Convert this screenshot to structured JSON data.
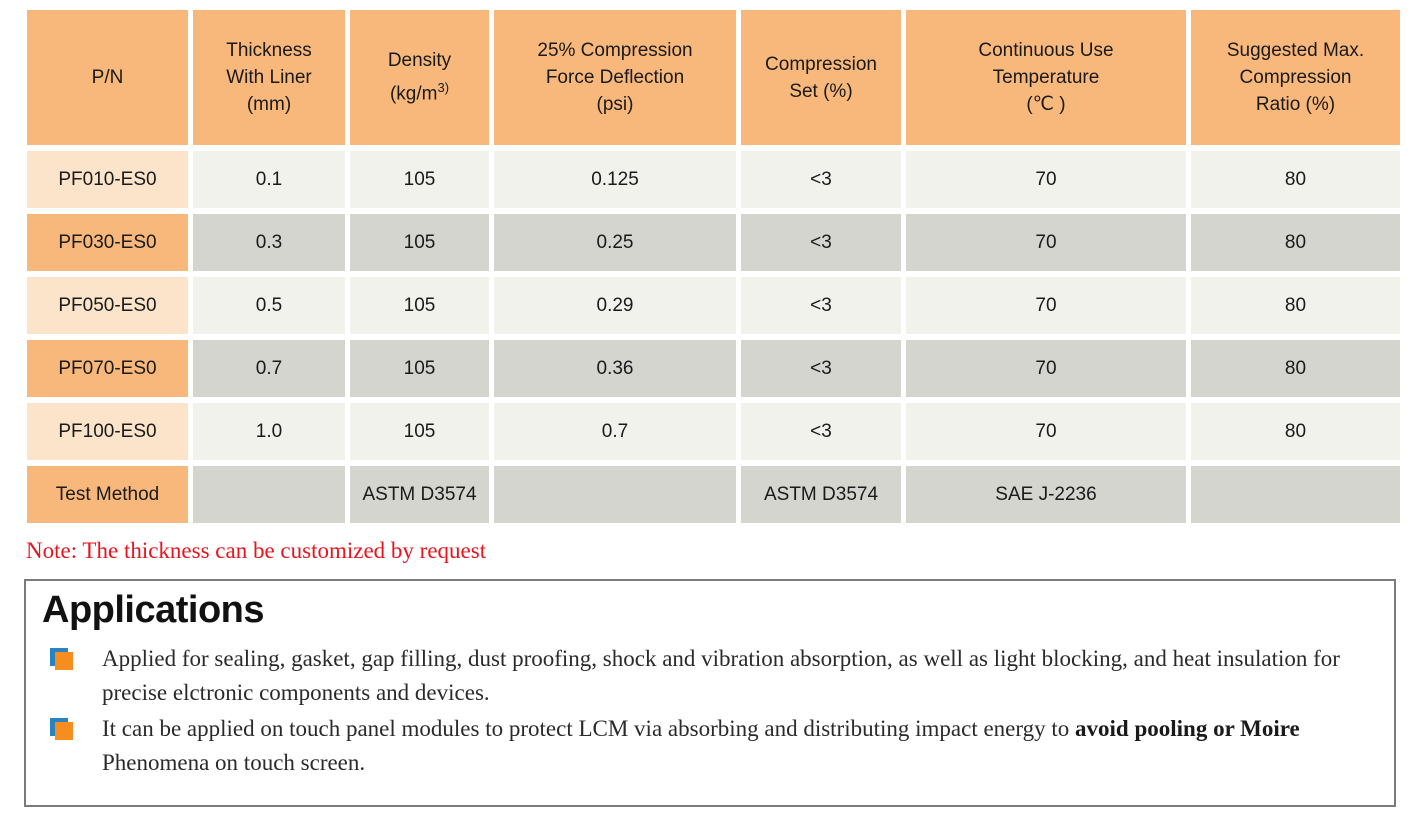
{
  "table": {
    "headers": {
      "pn": "P/N",
      "thickness": "Thickness\nWith Liner\n(mm)",
      "density_pre": "Density\n(kg/m",
      "density_sup": "3)",
      "cfd": "25% Compression\nForce Deflection\n(psi)",
      "compression_set": "Compression\nSet (%)",
      "continuous_temp": "Continuous Use\nTemperature\n(℃ )",
      "max_ratio": "Suggested Max.\nCompression\nRatio (%)"
    },
    "rows": [
      {
        "cells": [
          "PF010-ES0",
          "0.1",
          "105",
          "0.125",
          "<3",
          "70",
          "80"
        ]
      },
      {
        "cells": [
          "PF030-ES0",
          "0.3",
          "105",
          "0.25",
          "<3",
          "70",
          "80"
        ]
      },
      {
        "cells": [
          "PF050-ES0",
          "0.5",
          "105",
          "0.29",
          "<3",
          "70",
          "80"
        ]
      },
      {
        "cells": [
          "PF070-ES0",
          "0.7",
          "105",
          "0.36",
          "<3",
          "70",
          "80"
        ]
      },
      {
        "cells": [
          "PF100-ES0",
          "1.0",
          "105",
          "0.7",
          "<3",
          "70",
          "80"
        ]
      }
    ],
    "test_method_row": {
      "cells": [
        "Test Method",
        "",
        "ASTM D3574",
        "",
        "ASTM D3574",
        "SAE J-2236",
        ""
      ]
    }
  },
  "note": "Note: The thickness can be customized by request",
  "applications": {
    "title": "Applications",
    "bullet1": "Applied for sealing, gasket, gap filling, dust proofing, shock and vibration absorption, as well as light blocking, and heat insulation for precise elctronic components and devices.",
    "bullet2_part1": "It can be applied on touch panel modules to protect LCM via absorbing and distributing impact energy to ",
    "bullet2_bold": "avoid pooling or Moire",
    "bullet2_part2": " Phenomena on touch screen."
  },
  "colors": {
    "header_orange": "#f8b87c",
    "pn_light": "#fce4cb",
    "row_light": "#f2f2ed",
    "row_dark": "#d4d5ce",
    "note_red": "#e8131c",
    "bullet_blue": "#2a83bf",
    "bullet_orange": "#f68d1e"
  }
}
